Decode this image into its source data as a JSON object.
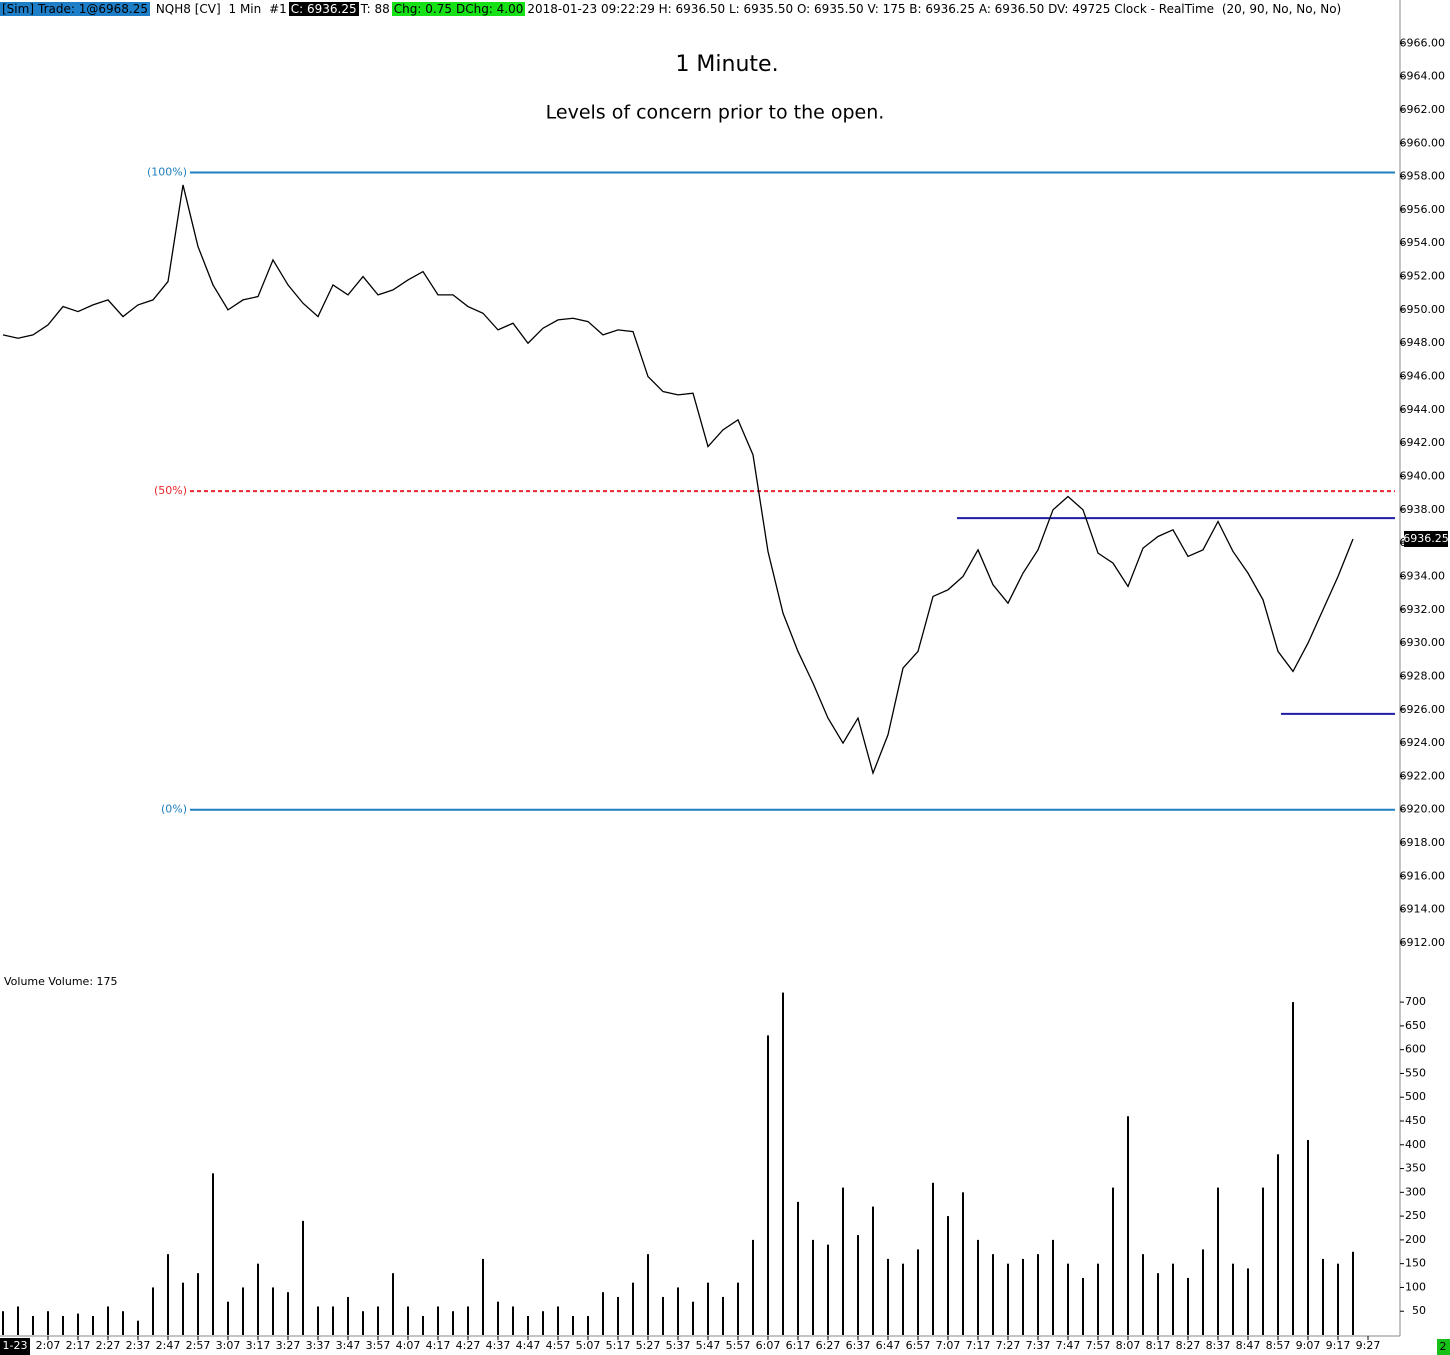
{
  "header": {
    "account": "[Sim]",
    "trade": "Trade: 1@6968.25",
    "symbol": "NQH8 [CV]",
    "interval": "1 Min",
    "chart_id": "#1",
    "close": "C: 6936.25",
    "ticks": "T: 88",
    "change": "Chg: 0.75",
    "day_change": "DChg: 4.00",
    "details": "2018-01-23 09:22:29 H: 6936.50 L: 6935.50 O: 6935.50 V: 175 B: 6936.25 A: 6936.50 DV: 49725 Clock - RealTime",
    "params": "(20, 90, No, No, No)"
  },
  "chart_data": [
    {
      "type": "line",
      "title": "1 Minute.",
      "subtitle": "Levels of concern prior to the open.",
      "x": [
        "1:52",
        "1:57",
        "2:02",
        "2:07",
        "2:12",
        "2:17",
        "2:22",
        "2:27",
        "2:32",
        "2:37",
        "2:42",
        "2:47",
        "2:52",
        "2:57",
        "3:02",
        "3:07",
        "3:12",
        "3:17",
        "3:22",
        "3:27",
        "3:32",
        "3:37",
        "3:42",
        "3:47",
        "3:52",
        "3:57",
        "4:02",
        "4:07",
        "4:12",
        "4:17",
        "4:22",
        "4:27",
        "4:32",
        "4:37",
        "4:42",
        "4:47",
        "4:52",
        "4:57",
        "5:02",
        "5:07",
        "5:12",
        "5:17",
        "5:22",
        "5:27",
        "5:32",
        "5:37",
        "5:42",
        "5:47",
        "5:52",
        "5:57",
        "6:02",
        "6:07",
        "6:12",
        "6:17",
        "6:22",
        "6:27",
        "6:32",
        "6:37",
        "6:42",
        "6:47",
        "6:52",
        "6:57",
        "7:02",
        "7:07",
        "7:12",
        "7:17",
        "7:22",
        "7:27",
        "7:32",
        "7:37",
        "7:42",
        "7:47",
        "7:52",
        "7:57",
        "8:02",
        "8:07",
        "8:12",
        "8:17",
        "8:22",
        "8:27",
        "8:32",
        "8:37",
        "8:42",
        "8:47",
        "8:52",
        "8:57",
        "9:02",
        "9:07",
        "9:12",
        "9:17",
        "9:22"
      ],
      "series": [
        {
          "color": "#000000",
          "values": [
            6948.5,
            6948.3,
            6948.5,
            6949.1,
            6950.2,
            6949.9,
            6950.3,
            6950.6,
            6949.6,
            6950.3,
            6950.6,
            6951.7,
            6957.5,
            6953.8,
            6951.5,
            6950,
            6950.6,
            6950.8,
            6953,
            6951.5,
            6950.4,
            6949.6,
            6951.5,
            6950.9,
            6952,
            6950.9,
            6951.2,
            6951.8,
            6952.3,
            6950.9,
            6950.9,
            6950.2,
            6949.8,
            6948.8,
            6949.2,
            6948,
            6948.9,
            6949.4,
            6949.5,
            6949.3,
            6948.5,
            6948.8,
            6948.7,
            6946,
            6945.1,
            6944.9,
            6945,
            6941.8,
            6942.8,
            6943.4,
            6941.3,
            6935.5,
            6931.8,
            6929.5,
            6927.6,
            6925.5,
            6924,
            6925.5,
            6922.2,
            6924.5,
            6928.5,
            6929.5,
            6932.8,
            6933.2,
            6934,
            6935.6,
            6933.5,
            6932.4,
            6934.2,
            6935.6,
            6938,
            6938.8,
            6938,
            6935.4,
            6934.8,
            6933.4,
            6935.7,
            6936.4,
            6936.8,
            6935.2,
            6935.6,
            6937.3,
            6935.5,
            6934.2,
            6932.6,
            6929.5,
            6928.3,
            6930,
            6932,
            6934,
            6936.25
          ]
        }
      ],
      "ylim": [
        6910.5,
        6968.6
      ],
      "yticks": [
        {
          "value": 6912,
          "label": "6912.00"
        },
        {
          "value": 6914,
          "label": "6914.00"
        },
        {
          "value": 6916,
          "label": "6916.00"
        },
        {
          "value": 6918,
          "label": "6918.00"
        },
        {
          "value": 6920,
          "label": "6920.00"
        },
        {
          "value": 6922,
          "label": "6922.00"
        },
        {
          "value": 6924,
          "label": "6924.00"
        },
        {
          "value": 6926,
          "label": "6926.00"
        },
        {
          "value": 6928,
          "label": "6928.00"
        },
        {
          "value": 6930,
          "label": "6930.00"
        },
        {
          "value": 6932,
          "label": "6932.00"
        },
        {
          "value": 6934,
          "label": "6934.00"
        },
        {
          "value": 6936,
          "label": "6936.00"
        },
        {
          "value": 6938,
          "label": "6938.00"
        },
        {
          "value": 6940,
          "label": "6940.00"
        },
        {
          "value": 6942,
          "label": "6942.00"
        },
        {
          "value": 6944,
          "label": "6944.00"
        },
        {
          "value": 6946,
          "label": "6946.00"
        },
        {
          "value": 6948,
          "label": "6948.00"
        },
        {
          "value": 6950,
          "label": "6950.00"
        },
        {
          "value": 6952,
          "label": "6952.00"
        },
        {
          "value": 6954,
          "label": "6954.00"
        },
        {
          "value": 6956,
          "label": "6956.00"
        },
        {
          "value": 6958,
          "label": "6958.00"
        },
        {
          "value": 6960,
          "label": "6960.00"
        },
        {
          "value": 6962,
          "label": "6962.00"
        },
        {
          "value": 6964,
          "label": "6964.00"
        },
        {
          "value": 6966,
          "label": "6966.00"
        }
      ],
      "levels": [
        {
          "label": "(100%)",
          "value": 6958.25,
          "color": "#1f7fbf"
        },
        {
          "label": "(50%)",
          "value": 6939.125,
          "color": "#e8262b",
          "dashed": true
        },
        {
          "label": "(0%)",
          "value": 6920,
          "color": "#1f7fbf"
        },
        {
          "value": 6937.5,
          "color": "#1c1ca8"
        },
        {
          "value": 6925.75,
          "color": "#1c1ca8"
        }
      ],
      "last_price": 6936.25
    },
    {
      "type": "bar",
      "title": "Volume  Volume: 175",
      "color": "#000000",
      "x": [
        "1:52",
        "1:57",
        "2:02",
        "2:07",
        "2:12",
        "2:17",
        "2:22",
        "2:27",
        "2:32",
        "2:37",
        "2:42",
        "2:47",
        "2:52",
        "2:57",
        "3:02",
        "3:07",
        "3:12",
        "3:17",
        "3:22",
        "3:27",
        "3:32",
        "3:37",
        "3:42",
        "3:47",
        "3:52",
        "3:57",
        "4:02",
        "4:07",
        "4:12",
        "4:17",
        "4:22",
        "4:27",
        "4:32",
        "4:37",
        "4:42",
        "4:47",
        "4:52",
        "4:57",
        "5:02",
        "5:07",
        "5:12",
        "5:17",
        "5:22",
        "5:27",
        "5:32",
        "5:37",
        "5:42",
        "5:47",
        "5:52",
        "5:57",
        "6:02",
        "6:07",
        "6:12",
        "6:17",
        "6:22",
        "6:27",
        "6:32",
        "6:37",
        "6:42",
        "6:47",
        "6:52",
        "6:57",
        "7:02",
        "7:07",
        "7:12",
        "7:17",
        "7:22",
        "7:27",
        "7:32",
        "7:37",
        "7:42",
        "7:47",
        "7:52",
        "7:57",
        "8:02",
        "8:07",
        "8:12",
        "8:17",
        "8:22",
        "8:27",
        "8:32",
        "8:37",
        "8:42",
        "8:47",
        "8:52",
        "8:57",
        "9:02",
        "9:07",
        "9:12",
        "9:17",
        "9:22"
      ],
      "values": [
        50,
        60,
        40,
        50,
        40,
        45,
        40,
        60,
        50,
        30,
        100,
        170,
        110,
        130,
        340,
        70,
        100,
        150,
        100,
        90,
        240,
        60,
        60,
        80,
        50,
        60,
        130,
        60,
        40,
        60,
        50,
        60,
        160,
        70,
        60,
        40,
        50,
        60,
        40,
        40,
        90,
        80,
        110,
        170,
        80,
        100,
        70,
        110,
        80,
        110,
        200,
        630,
        720,
        280,
        200,
        190,
        310,
        210,
        270,
        160,
        150,
        180,
        320,
        250,
        300,
        200,
        170,
        150,
        160,
        170,
        200,
        150,
        120,
        150,
        310,
        460,
        170,
        130,
        150,
        120,
        180,
        310,
        150,
        140,
        310,
        380,
        700,
        410,
        160,
        150,
        175
      ],
      "ylim": [
        0,
        757
      ],
      "yticks": [
        50,
        100,
        150,
        200,
        250,
        300,
        350,
        400,
        450,
        500,
        550,
        600,
        650,
        700
      ],
      "xticks": [
        "2:07",
        "2:17",
        "2:27",
        "2:37",
        "2:47",
        "2:57",
        "3:07",
        "3:17",
        "3:27",
        "3:37",
        "3:47",
        "3:57",
        "4:07",
        "4:17",
        "4:27",
        "4:37",
        "4:47",
        "4:57",
        "5:07",
        "5:17",
        "5:27",
        "5:37",
        "5:47",
        "5:57",
        "6:07",
        "6:17",
        "6:27",
        "6:37",
        "6:47",
        "6:57",
        "7:07",
        "7:17",
        "7:27",
        "7:37",
        "7:47",
        "7:57",
        "8:07",
        "8:17",
        "8:27",
        "8:37",
        "8:47",
        "8:57",
        "9:07",
        "9:17",
        "9:27"
      ],
      "date_label": "1-23"
    }
  ],
  "footer_badge": "2"
}
